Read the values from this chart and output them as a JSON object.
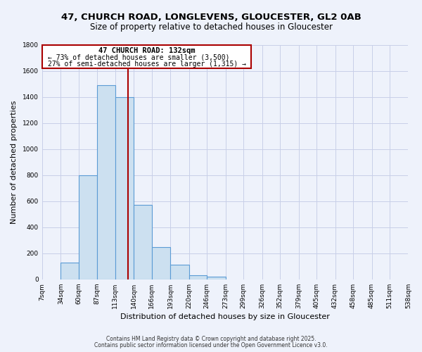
{
  "title_line1": "47, CHURCH ROAD, LONGLEVENS, GLOUCESTER, GL2 0AB",
  "title_line2": "Size of property relative to detached houses in Gloucester",
  "xlabel": "Distribution of detached houses by size in Gloucester",
  "ylabel": "Number of detached properties",
  "bin_edges": [
    7,
    34,
    60,
    87,
    113,
    140,
    166,
    193,
    220,
    246,
    273,
    299,
    326,
    352,
    379,
    405,
    432,
    458,
    485,
    511,
    538
  ],
  "bar_heights": [
    0,
    130,
    800,
    1490,
    1400,
    570,
    250,
    110,
    30,
    20,
    0,
    0,
    0,
    0,
    0,
    0,
    0,
    0,
    0,
    0
  ],
  "bar_face_color": "#cce0f0",
  "bar_edge_color": "#5b9bd5",
  "property_size": 132,
  "red_line_color": "#aa0000",
  "annotation_text_line1": "47 CHURCH ROAD: 132sqm",
  "annotation_text_line2": "← 73% of detached houses are smaller (3,500)",
  "annotation_text_line3": "27% of semi-detached houses are larger (1,315) →",
  "annotation_box_color": "#ffffff",
  "annotation_box_edge_color": "#aa0000",
  "ylim": [
    0,
    1800
  ],
  "yticks": [
    0,
    200,
    400,
    600,
    800,
    1000,
    1200,
    1400,
    1600,
    1800
  ],
  "background_color": "#eef2fb",
  "grid_color": "#c8cfe8",
  "footer_line1": "Contains HM Land Registry data © Crown copyright and database right 2025.",
  "footer_line2": "Contains public sector information licensed under the Open Government Licence v3.0.",
  "title_fontsize": 9.5,
  "subtitle_fontsize": 8.5,
  "axis_label_fontsize": 8,
  "tick_label_fontsize": 6.5,
  "annotation_fontsize": 7.5,
  "footer_fontsize": 5.5
}
